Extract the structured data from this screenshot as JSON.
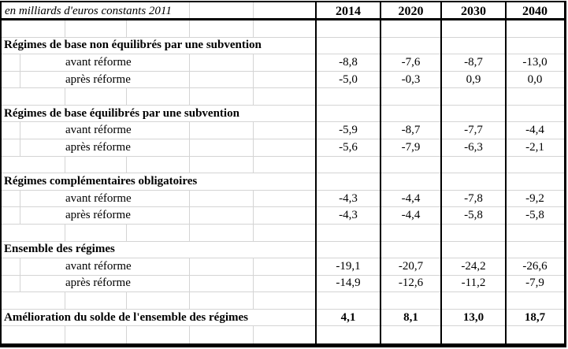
{
  "header": {
    "unit_label": "en milliards d'euros constants 2011",
    "columns": [
      "2014",
      "2020",
      "2030",
      "2040"
    ]
  },
  "rows": [
    {
      "type": "empty"
    },
    {
      "type": "section",
      "label": "Régimes de base non équilibrés par une subvention"
    },
    {
      "type": "data",
      "label": "avant réforme",
      "values": [
        "-8,8",
        "-7,6",
        "-8,7",
        "-13,0"
      ]
    },
    {
      "type": "data",
      "label": "après réforme",
      "values": [
        "-5,0",
        "-0,3",
        "0,9",
        "0,0"
      ]
    },
    {
      "type": "empty"
    },
    {
      "type": "section",
      "label": "Régimes de base équilibrés par une subvention"
    },
    {
      "type": "data",
      "label": "avant réforme",
      "values": [
        "-5,9",
        "-8,7",
        "-7,7",
        "-4,4"
      ]
    },
    {
      "type": "data",
      "label": "après réforme",
      "values": [
        "-5,6",
        "-7,9",
        "-6,3",
        "-2,1"
      ]
    },
    {
      "type": "empty"
    },
    {
      "type": "section",
      "label": "Régimes complémentaires obligatoires"
    },
    {
      "type": "data",
      "label": "avant réforme",
      "values": [
        "-4,3",
        "-4,4",
        "-7,8",
        "-9,2"
      ]
    },
    {
      "type": "data",
      "label": "après réforme",
      "values": [
        "-4,3",
        "-4,4",
        "-5,8",
        "-5,8"
      ]
    },
    {
      "type": "empty"
    },
    {
      "type": "section",
      "label": "Ensemble des régimes"
    },
    {
      "type": "data",
      "label": "avant réforme",
      "values": [
        "-19,1",
        "-20,7",
        "-24,2",
        "-26,6"
      ]
    },
    {
      "type": "data",
      "label": "après réforme",
      "values": [
        "-14,9",
        "-12,6",
        "-11,2",
        "-7,9"
      ]
    },
    {
      "type": "empty"
    },
    {
      "type": "total",
      "label": "Amélioration du solde de l'ensemble des régimes",
      "values": [
        "4,1",
        "8,1",
        "13,0",
        "18,7"
      ]
    },
    {
      "type": "empty"
    }
  ],
  "colors": {
    "text": "#000000",
    "border": "#000000",
    "gridline": "#d4d4d4",
    "background": "#ffffff"
  }
}
